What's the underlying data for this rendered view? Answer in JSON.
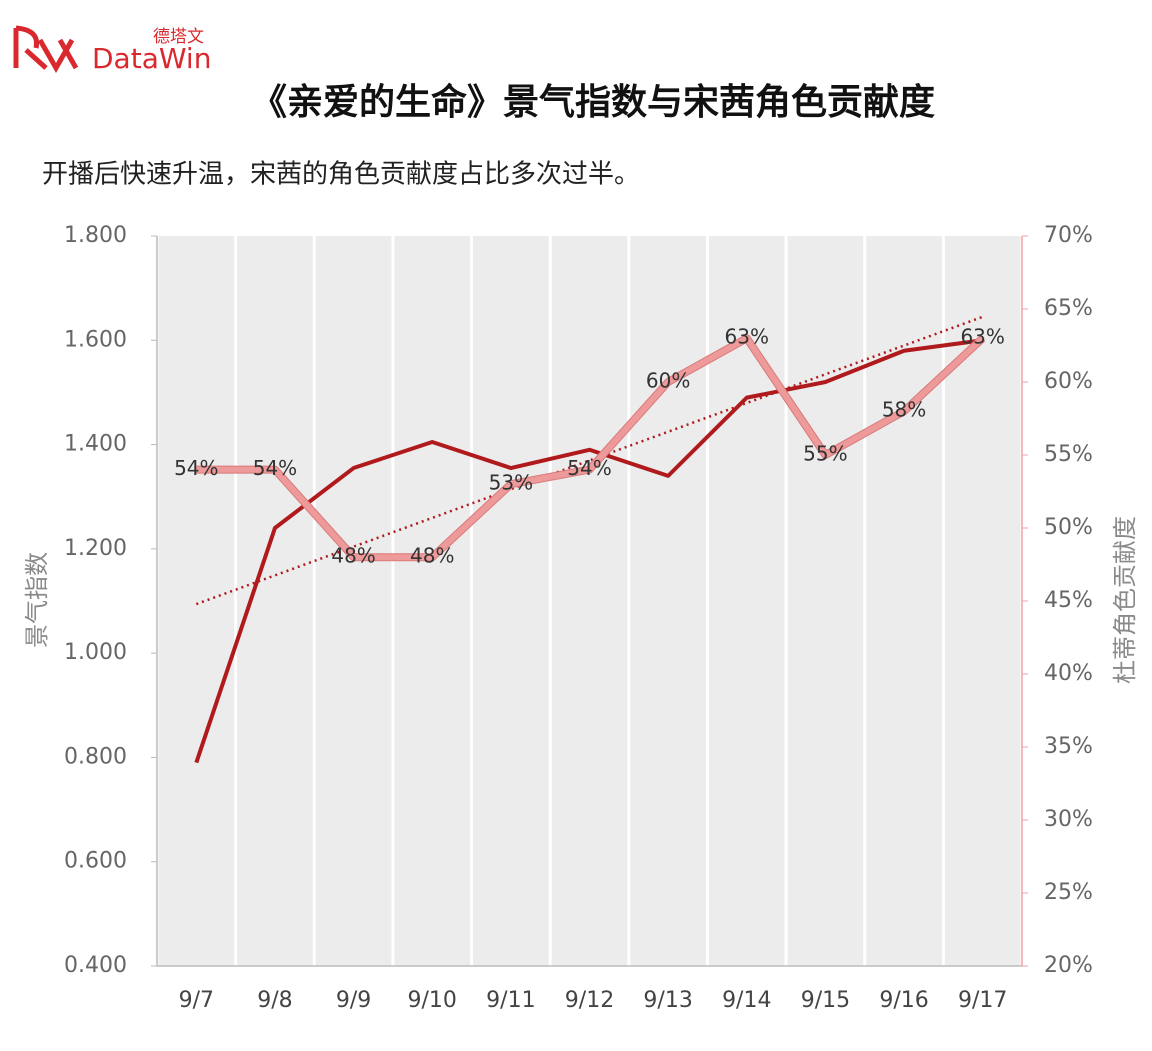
{
  "logo": {
    "cn": "德塔文",
    "brand": "DataWin"
  },
  "chart_data": {
    "type": "line",
    "title": "《亲爱的生命》景气指数与宋茜角色贡献度",
    "subtitle": "开播后快速升温，宋茜的角色贡献度占比多次过半。",
    "y_label": "景气指数",
    "y2_label": "杜蒂角色贡献度",
    "categories": [
      "9/7",
      "9/8",
      "9/9",
      "9/10",
      "9/11",
      "9/12",
      "9/13",
      "9/14",
      "9/15",
      "9/16",
      "9/17"
    ],
    "ylim": [
      0.4,
      1.8
    ],
    "yticks": [
      {
        "value": 0.4,
        "label": "0.400"
      },
      {
        "value": 0.6,
        "label": "0.600"
      },
      {
        "value": 0.8,
        "label": "0.800"
      },
      {
        "value": 1.0,
        "label": "1.000"
      },
      {
        "value": 1.2,
        "label": "1.200"
      },
      {
        "value": 1.4,
        "label": "1.400"
      },
      {
        "value": 1.6,
        "label": "1.600"
      },
      {
        "value": 1.8,
        "label": "1.800"
      }
    ],
    "y2lim": [
      20,
      70
    ],
    "y2ticks": [
      {
        "value": 20,
        "label": "20%"
      },
      {
        "value": 25,
        "label": "25%"
      },
      {
        "value": 30,
        "label": "30%"
      },
      {
        "value": 35,
        "label": "35%"
      },
      {
        "value": 40,
        "label": "40%"
      },
      {
        "value": 45,
        "label": "45%"
      },
      {
        "value": 50,
        "label": "50%"
      },
      {
        "value": 55,
        "label": "55%"
      },
      {
        "value": 60,
        "label": "60%"
      },
      {
        "value": 65,
        "label": "65%"
      },
      {
        "value": 70,
        "label": "70%"
      }
    ],
    "series": [
      {
        "color": "#b01a1c",
        "trendline": true,
        "values": [
          0.79,
          1.24,
          1.355,
          1.405,
          1.355,
          1.39,
          1.34,
          1.49,
          1.52,
          1.58,
          1.6
        ]
      },
      {
        "color": "#ee9a9a",
        "axis": "y2",
        "values": [
          54,
          54,
          48,
          48,
          53,
          54,
          60,
          63,
          55,
          58,
          63
        ],
        "value_labels": [
          "54%",
          "54%",
          "48%",
          "48%",
          "53%",
          "54%",
          "60%",
          "63%",
          "55%",
          "58%",
          "63%"
        ]
      }
    ]
  }
}
